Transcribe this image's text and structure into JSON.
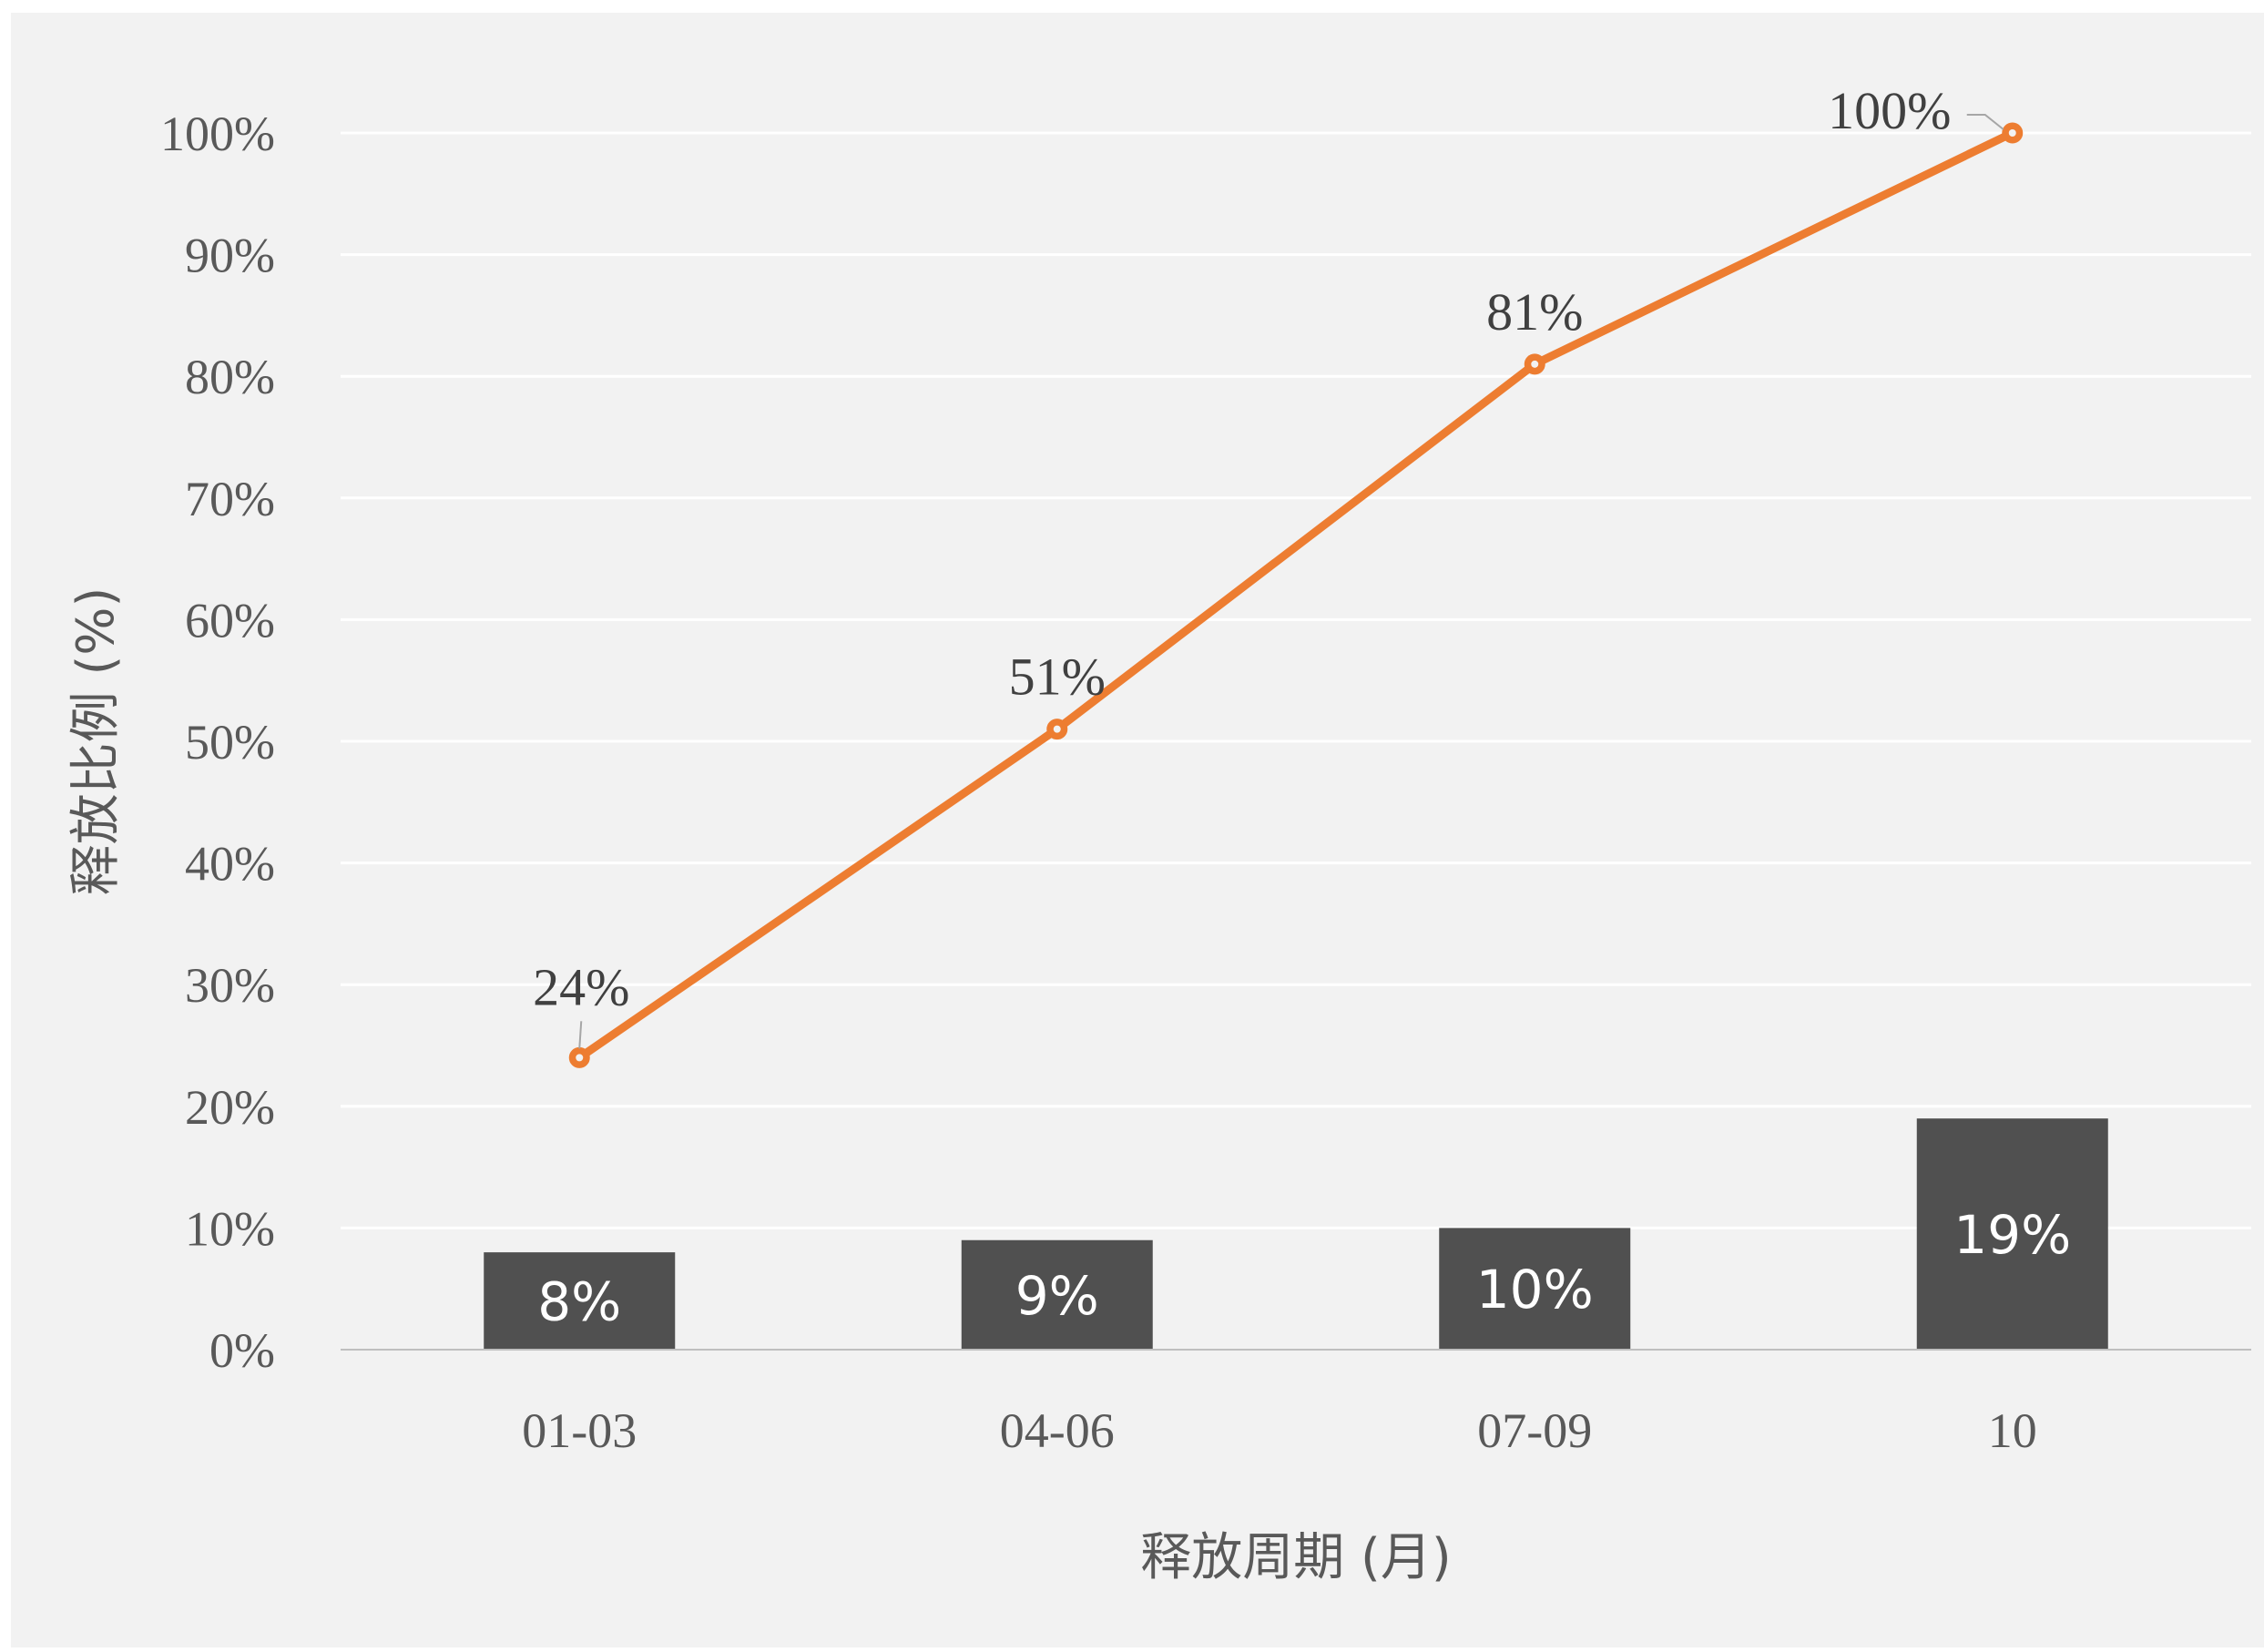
{
  "chart_data": {
    "type": "bar",
    "combo": "bar+line",
    "title": "",
    "xlabel": "释放周期 (月)",
    "ylabel": "释放比例 (%)",
    "ylim": [
      0,
      100
    ],
    "yticks": [
      0,
      10,
      20,
      30,
      40,
      50,
      60,
      70,
      80,
      90,
      100
    ],
    "ytick_labels": [
      "0%",
      "10%",
      "20%",
      "30%",
      "40%",
      "50%",
      "60%",
      "70%",
      "80%",
      "90%",
      "100%"
    ],
    "categories": [
      "01-03",
      "04-06",
      "07-09",
      "10"
    ],
    "grid": true,
    "legend": "none",
    "series": [
      {
        "type": "bar",
        "values": [
          8,
          9,
          10,
          19
        ],
        "labels": [
          "8%",
          "9%",
          "10%",
          "19%"
        ],
        "color": "#505050"
      },
      {
        "type": "line",
        "values": [
          24,
          51,
          81,
          100
        ],
        "labels": [
          "24%",
          "51%",
          "81%",
          "100%"
        ],
        "color": "#ed7d31"
      }
    ],
    "background": "#f2f2f2",
    "gridline_color": "#ffffff"
  }
}
